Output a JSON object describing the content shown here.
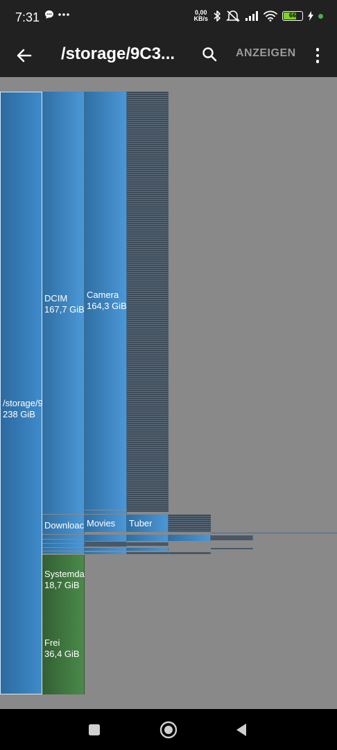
{
  "status_bar": {
    "time": "7:31",
    "net_speed_value": "0,00",
    "net_speed_unit": "KB/s",
    "battery_level": "66",
    "icons": [
      "chat-bubble-icon",
      "more-notifications-icon",
      "bluetooth-icon",
      "mute-icon",
      "signal-icon",
      "wifi-icon",
      "battery-icon",
      "charging-icon"
    ]
  },
  "app_bar": {
    "title": "/storage/9C3...",
    "show_label": "ANZEIGEN",
    "icons": [
      "back-arrow-icon",
      "search-icon",
      "overflow-menu-icon"
    ]
  },
  "treemap": {
    "root": {
      "name": "/storage/9",
      "size": "238 GiB"
    },
    "dcim": {
      "name": "DCIM",
      "size": "167,7 GiB"
    },
    "camera": {
      "name": "Camera",
      "size": "164,3 GiB"
    },
    "download": {
      "name": "Downloac"
    },
    "movies": {
      "name": "Movies"
    },
    "tuber": {
      "name": "Tuber"
    },
    "system": {
      "name": "Systemda",
      "size": "18,7 GiB"
    },
    "free": {
      "name": "Frei",
      "size": "36,4 GiB"
    }
  },
  "colors": {
    "bar_background": "#212121",
    "canvas_background": "#898989",
    "folder_blue": "#4b97d6",
    "system_green": "#4a8a4a",
    "battery_green": "#7ED321",
    "show_button_grey": "#9a9a9a"
  },
  "nav_bar": {
    "icons": [
      "recents-square-icon",
      "home-circle-icon",
      "back-triangle-icon"
    ]
  }
}
